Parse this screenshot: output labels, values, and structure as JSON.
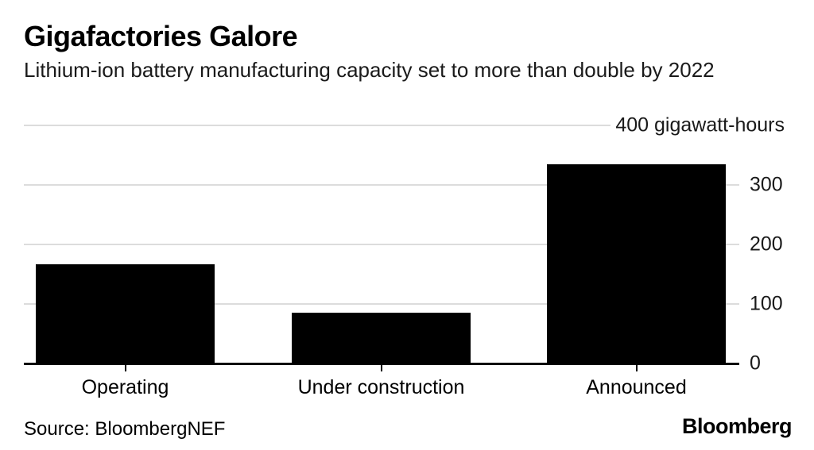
{
  "header": {
    "title": "Gigafactories Galore",
    "subtitle": "Lithium-ion battery manufacturing capacity set to more than double by 2022"
  },
  "chart_data": {
    "type": "bar",
    "title": "Gigafactories Galore",
    "subtitle": "Lithium-ion battery manufacturing capacity set to more than double by 2022",
    "categories": [
      "Operating",
      "Under construction",
      "Announced"
    ],
    "values": [
      167,
      85,
      335
    ],
    "unit": "gigawatt-hours",
    "xlabel": "",
    "ylabel": "gigawatt-hours",
    "ylim": [
      0,
      400
    ],
    "yticks": [
      0,
      100,
      200,
      300
    ],
    "top_axis_label": "400 gigawatt-hours",
    "axis_side": "right",
    "grid": true,
    "bar_color": "#000000",
    "gridline_color": "#dcdcdc",
    "axis_line_color": "#000000",
    "text_color": "#1a1a1a"
  },
  "footer": {
    "source": "Source: BloombergNEF",
    "brand": "Bloomberg"
  }
}
